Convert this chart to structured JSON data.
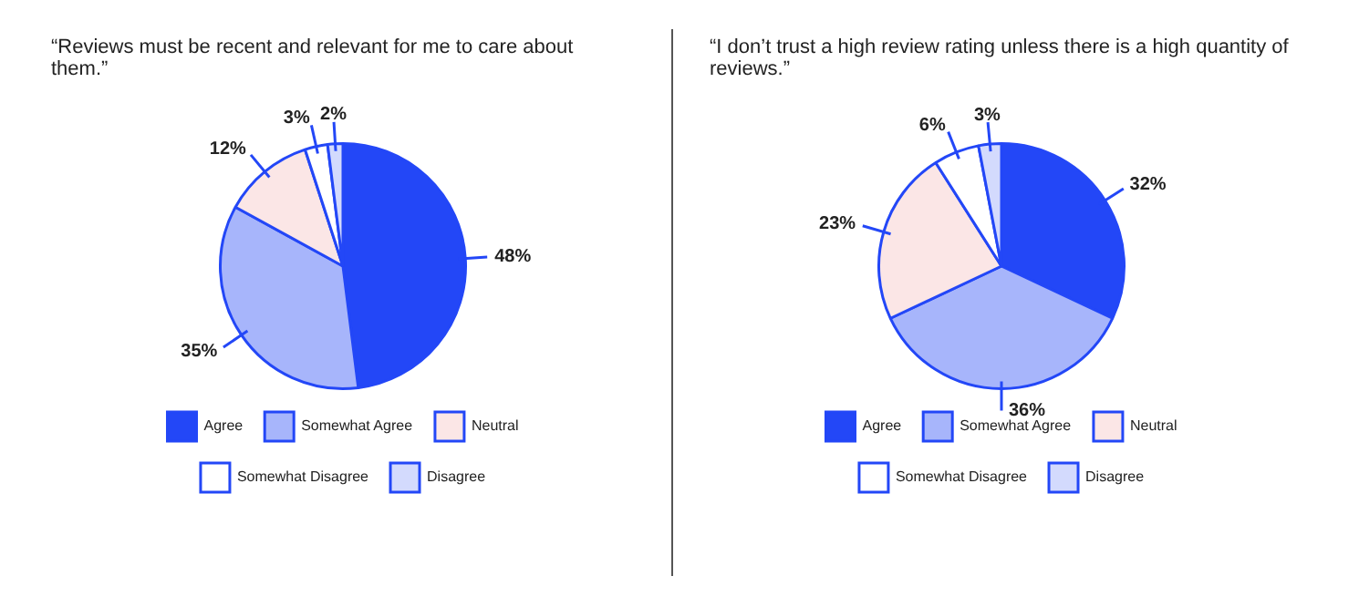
{
  "chart_data": [
    {
      "type": "pie",
      "title": "“Reviews must be recent and relevant for me to care about them.”",
      "categories": [
        "Agree",
        "Somewhat Agree",
        "Neutral",
        "Somewhat Disagree",
        "Disagree"
      ],
      "values": [
        48,
        35,
        12,
        3,
        2
      ],
      "colors": [
        "#2347f7",
        "#a7b5fb",
        "#fbe6e6",
        "#ffffff",
        "#d3dafd"
      ],
      "value_labels": [
        "48%",
        "35%",
        "12%",
        "3%",
        "2%"
      ],
      "legend": "bottom"
    },
    {
      "type": "pie",
      "title": "“I don’t trust a high review rating unless there is a high quantity of reviews.”",
      "categories": [
        "Agree",
        "Somewhat Agree",
        "Neutral",
        "Somewhat Disagree",
        "Disagree"
      ],
      "values": [
        32,
        36,
        23,
        6,
        3
      ],
      "colors": [
        "#2347f7",
        "#a7b5fb",
        "#fbe6e6",
        "#ffffff",
        "#d3dafd"
      ],
      "value_labels": [
        "32%",
        "36%",
        "23%",
        "6%",
        "3%"
      ],
      "legend": "bottom"
    }
  ]
}
